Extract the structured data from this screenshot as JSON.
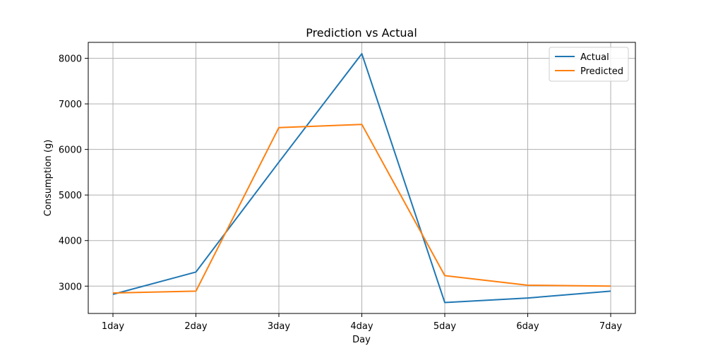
{
  "chart_data": {
    "type": "line",
    "title": "Prediction vs Actual",
    "xlabel": "Day",
    "ylabel": "Consumption (g)",
    "categories": [
      "1day",
      "2day",
      "3day",
      "4day",
      "5day",
      "6day",
      "7day"
    ],
    "yticks": [
      3000,
      4000,
      5000,
      6000,
      7000,
      8000
    ],
    "ylim": [
      2400,
      8350
    ],
    "grid": true,
    "legend_position": "top-right",
    "series": [
      {
        "name": "Actual",
        "color": "#1f77b4",
        "values": [
          2820,
          3310,
          5720,
          8100,
          2640,
          2740,
          2890
        ]
      },
      {
        "name": "Predicted",
        "color": "#ff7f0e",
        "values": [
          2850,
          2890,
          6480,
          6550,
          3230,
          3020,
          3000
        ]
      }
    ]
  }
}
